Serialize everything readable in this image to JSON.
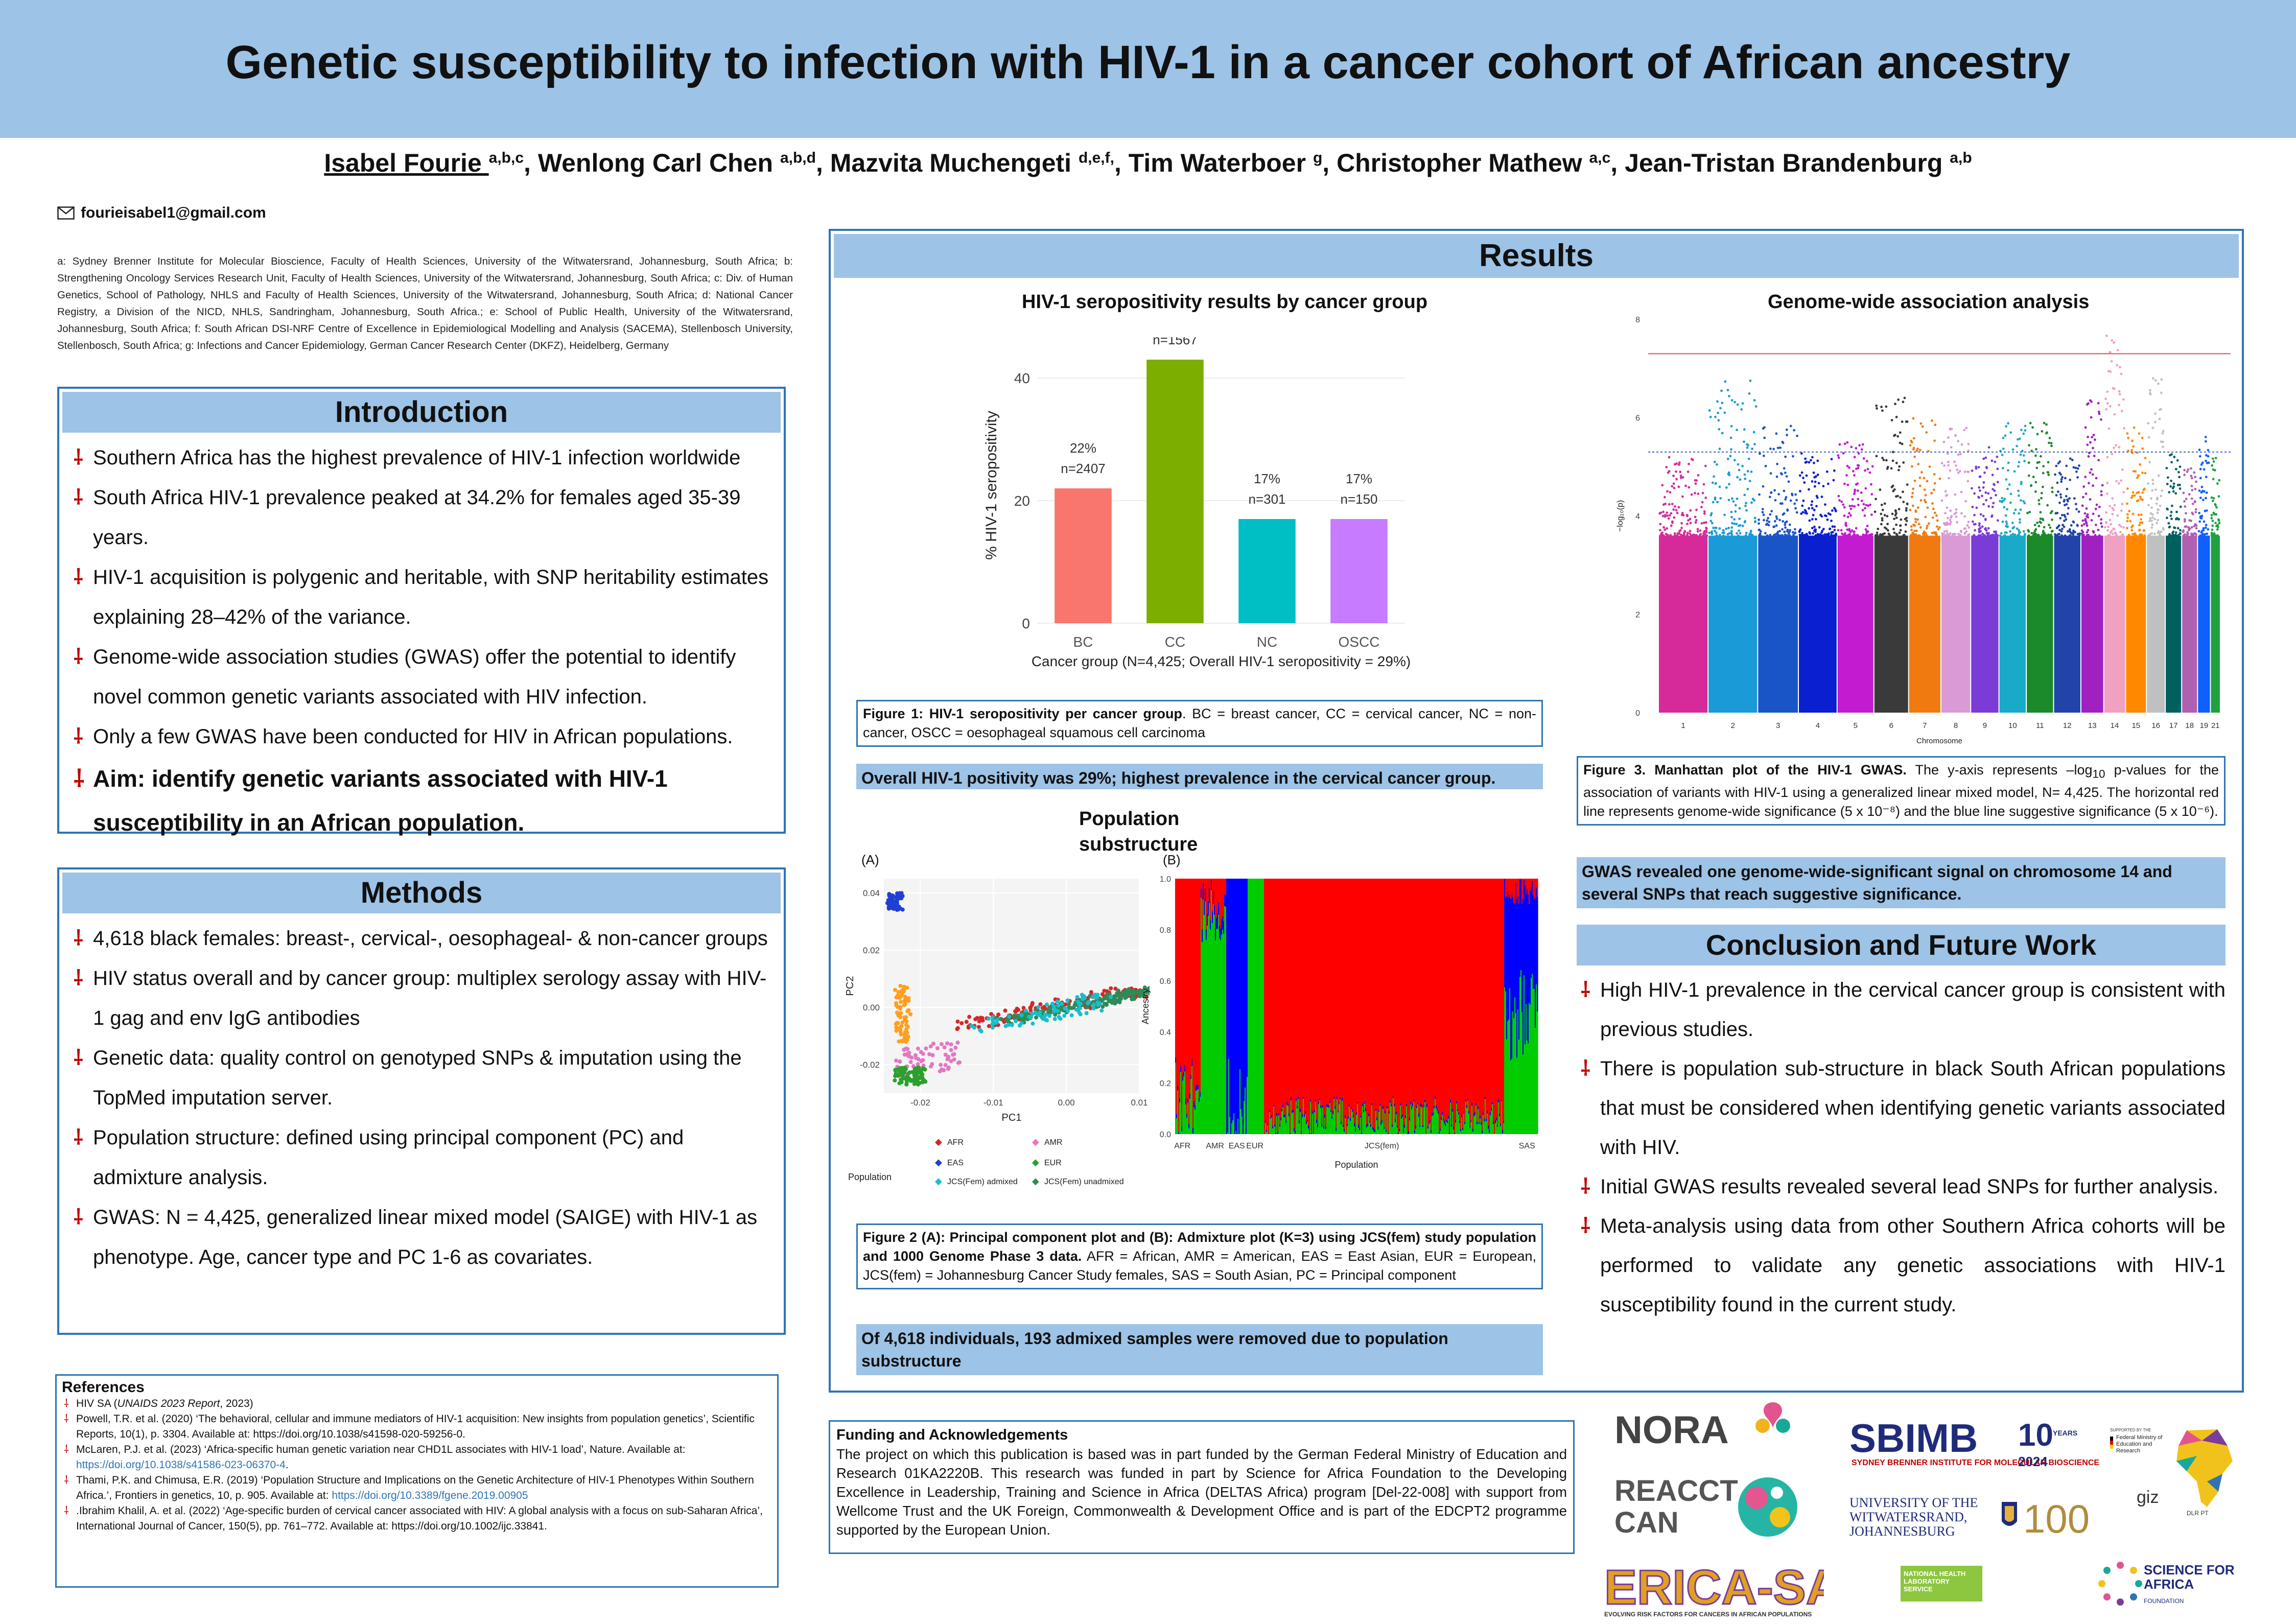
{
  "title": "Genetic susceptibility to infection with HIV-1 in a cancer cohort of African ancestry",
  "authors": [
    {
      "name": "Isabel Fourie",
      "sup": "a,b,c"
    },
    {
      "name": "Wenlong Carl Chen",
      "sup": "a,b,d"
    },
    {
      "name": "Mazvita Muchengeti",
      "sup": "d,e,f,"
    },
    {
      "name": "Tim Waterboer",
      "sup": "g"
    },
    {
      "name": "Christopher Mathew",
      "sup": "a,c"
    },
    {
      "name": "Jean-Tristan Brandenburg",
      "sup": "a,b"
    }
  ],
  "email": "fourieisabel1@gmail.com",
  "affiliations": "a: Sydney Brenner Institute for Molecular Bioscience, Faculty of Health Sciences, University of the Witwatersrand, Johannesburg, South Africa; b: Strengthening Oncology Services Research Unit, Faculty of Health Sciences, University of the Witwatersrand, Johannesburg, South Africa; c: Div. of Human Genetics, School of Pathology, NHLS and Faculty of Health Sciences, University of the Witwatersrand, Johannesburg, South Africa; d: National Cancer Registry, a Division of the NICD, NHLS, Sandringham, Johannesburg, South Africa.; e: School of Public Health, University of the Witwatersrand, Johannesburg, South Africa; f: South African DSI-NRF Centre of Excellence in Epidemiological Modelling and Analysis (SACEMA), Stellenbosch University, Stellenbosch, South Africa; g: Infections and Cancer Epidemiology, German Cancer Research Center (DKFZ), Heidelberg, Germany",
  "introduction": {
    "heading": "Introduction",
    "bullets": [
      "Southern Africa has the highest prevalence of HIV-1 infection worldwide",
      "South Africa HIV-1 prevalence peaked at 34.2% for females aged 35-39 years.",
      "HIV-1 acquisition is polygenic and heritable, with SNP heritability estimates explaining 28–42% of the variance.",
      "Genome-wide association studies (GWAS) offer the potential to identify novel common genetic variants associated with HIV infection.",
      "Only a few GWAS have been conducted for HIV in African populations."
    ],
    "aim": "Aim: identify genetic variants associated with HIV-1 susceptibility in an African population."
  },
  "methods": {
    "heading": "Methods",
    "bullets": [
      "4,618 black females: breast-, cervical-, oesophageal- & non-cancer groups",
      "HIV status overall and by cancer group: multiplex serology assay with HIV-1 gag and env IgG antibodies",
      "Genetic data: quality control on genotyped SNPs & imputation using the TopMed imputation server.",
      "Population structure: defined using principal component (PC) and admixture analysis.",
      "GWAS: N = 4,425, generalized linear mixed model (SAIGE) with HIV-1 as phenotype. Age, cancer type and PC 1-6 as covariates."
    ]
  },
  "references": {
    "heading": "References",
    "items": [
      {
        "text": "HIV SA (",
        "italic": "UNAIDS 2023 Report",
        "tail": ", 2023)"
      },
      {
        "text": "Powell, T.R. et al. (2020) ‘The behavioral, cellular and immune mediators of HIV-1 acquisition: New insights from population genetics’, Scientific Reports, 10(1), p. 3304. Available at: https://doi.org/10.1038/s41598-020-59256-0.",
        "italic": "",
        "tail": ""
      },
      {
        "text": "McLaren, P.J. et al. (2023) ‘Africa-specific human genetic variation near CHD1L associates with HIV-1 load’, Nature. Available at: ",
        "italic": "",
        "tail": "",
        "link": "https://doi.org/10.1038/s41586-023-06370-4",
        "after": "."
      },
      {
        "text": "Thami, P.K. and Chimusa, E.R. (2019) ‘Population Structure and Implications on the Genetic Architecture of HIV-1 Phenotypes Within Southern Africa.’, Frontiers in genetics, 10, p. 905. Available at: ",
        "italic": "",
        "tail": "",
        "link": "https://doi.org/10.3389/fgene.2019.00905",
        "after": ""
      },
      {
        "text": ".Ibrahim Khalil, A. et al. (2022) ‘Age-specific burden of cervical cancer associated with HIV: A global analysis with a focus on sub-Saharan Africa’, International Journal of Cancer, 150(5), pp. 761–772. Available at: https://doi.org/10.1002/ijc.33841.",
        "italic": "",
        "tail": ""
      }
    ]
  },
  "results": {
    "heading": "Results",
    "fig1_title": "HIV-1 seropositivity results by cancer group",
    "fig1_caption_bold": "Figure 1: HIV-1 seropositivity per cancer group",
    "fig1_caption_rest": ". BC = breast cancer, CC = cervical cancer, NC = non-cancer, OSCC = oesophageal squamous cell carcinoma",
    "fig1_highlight": "Overall HIV-1 positivity was 29%; highest prevalence in the cervical cancer group.",
    "pop_title": "Population substructure",
    "fig2_caption_bold": "Figure 2 (A): Principal component plot and (B): Admixture plot (K=3) using JCS(fem) study population and 1000 Genome Phase 3 data.",
    "fig2_caption_rest": " AFR = African, AMR = American, EAS = East Asian, EUR = European, JCS(fem) = Johannesburg Cancer Study females, SAS = South Asian, PC = Principal component",
    "fig2_highlight": "Of 4,618 individuals, 193 admixed samples were removed due to population substructure",
    "gwas_title": "Genome-wide association analysis",
    "fig3_caption_bold": "Figure 3. Manhattan plot of the HIV-1 GWAS.",
    "fig3_caption_rest_1": " The y-axis represents –log",
    "fig3_caption_sub": "10",
    "fig3_caption_rest_2": " p-values for the association of variants with HIV-1 using a generalized linear mixed model, N= 4,425. The horizontal red line represents genome-wide significance (5 x 10⁻⁸) and the blue line suggestive significance (5 x 10⁻⁶).",
    "fig3_highlight": "GWAS revealed one genome-wide-significant signal on chromosome 14 and several SNPs that reach suggestive significance."
  },
  "conclusion": {
    "heading": "Conclusion and Future Work",
    "bullets": [
      "High HIV-1 prevalence in the cervical cancer group is consistent with previous studies.",
      "There is population sub-structure in black South African populations that must be considered when identifying genetic variants associated with HIV.",
      "Initial GWAS results revealed several lead SNPs for further analysis.",
      "Meta-analysis using data from other Southern Africa cohorts will be performed to validate any genetic associations with HIV-1 susceptibility found in the current study."
    ]
  },
  "funding": {
    "heading": "Funding and Acknowledgements",
    "text": "The project on which this publication is based was in part funded by the German Federal Ministry of Education and Research 01KA2220B. This research was funded in part by Science for Africa Foundation to the Developing Excellence in Leadership, Training and Science in Africa (DELTAS Africa) program [Del-22-008] with support from Wellcome Trust and the UK Foreign, Commonwealth & Development Office and is part of the EDCPT2 programme supported by the European Union."
  },
  "logos": {
    "nora": "NORA",
    "reacct": "REACCT CAN",
    "erica": "ERICA-SA",
    "erica_sub": "EVOLVING RISK FACTORS FOR CANCERS IN AFRICAN POPULATIONS",
    "sbimb": "SBIMB",
    "sbimb_sub": "SYDNEY BRENNER INSTITUTE FOR MOLECULAR BIOSCIENCE",
    "sbimb_years": "10",
    "sbimb_years_label": "YEARS",
    "sbimb_year": "2024",
    "wits": "UNIVERSITY OF THE WITWATERSRAND, JOHANNESBURG",
    "wits_100": "100",
    "nhls": "NATIONAL HEALTH LABORATORY SERVICE",
    "bmbf": "Federal Ministry of Education and Research",
    "bmbf_top": "SUPPORTED BY THE",
    "giz": "giz",
    "dlr": "DLR PT",
    "sfa": "SCIENCE FOR AFRICA",
    "sfa_sub": "FOUNDATION"
  },
  "chart_data": [
    {
      "type": "bar",
      "title": "HIV-1 seropositivity results by cancer group",
      "categories": [
        "BC",
        "CC",
        "NC",
        "OSCC"
      ],
      "values": [
        22,
        43,
        17,
        17
      ],
      "value_labels": [
        "22%",
        "43%",
        "17%",
        "17%"
      ],
      "n_labels": [
        "n=2407",
        "n=1567",
        "n=301",
        "n=150"
      ],
      "colors": [
        "#f8766d",
        "#7cae00",
        "#00bfc4",
        "#c77cff"
      ],
      "xlabel": "Cancer group (N=4,425; Overall HIV-1 seropositivity = 29%)",
      "ylabel": "% HIV-1 seropositivity",
      "yticks": [
        0,
        20,
        40
      ],
      "ylim": [
        0,
        45
      ]
    },
    {
      "type": "scatter",
      "panel_label": "(A)",
      "xlabel": "PC1",
      "ylabel": "PC2",
      "xticks": [
        "-0.02",
        "-0.01",
        "0.00",
        "0.01"
      ],
      "yticks": [
        "0.04",
        "0.02",
        "0.00",
        "-0.02"
      ],
      "legend_title": "Population",
      "legend": [
        {
          "name": "AFR",
          "color": "#d62728"
        },
        {
          "name": "AMR",
          "color": "#e377c2"
        },
        {
          "name": "EAS",
          "color": "#1f3fd6"
        },
        {
          "name": "EUR",
          "color": "#2ca02c"
        },
        {
          "name": "JCS(Fem) admixed",
          "color": "#17becf"
        },
        {
          "name": "JCS(Fem) unadmixed",
          "color": "#2e8b57"
        },
        {
          "name": "SAS",
          "color": "#ff9f1c"
        }
      ]
    },
    {
      "type": "area",
      "panel_label": "(B)",
      "xlabel": "Population",
      "ylabel": "Ancestry",
      "groups": [
        "AFR",
        "AMR",
        "EAS",
        "EUR",
        "JCS(fem)",
        "SAS"
      ],
      "yticks": [
        "0.0",
        "0.2",
        "0.4",
        "0.6",
        "0.8",
        "1.0"
      ],
      "colors": [
        "#ff0000",
        "#0000ff",
        "#00cc00"
      ]
    },
    {
      "type": "scatter",
      "title": "Genome-wide association analysis",
      "xlabel": "Chromosome",
      "ylabel": "−log₁₀(p)",
      "yticks": [
        0,
        2,
        4,
        6,
        8
      ],
      "ylim": [
        0,
        8
      ],
      "chromosomes": [
        "1",
        "2",
        "3",
        "4",
        "5",
        "6",
        "7",
        "8",
        "9",
        "10",
        "11",
        "12",
        "13",
        "14",
        "15",
        "16",
        "17",
        "18",
        "19",
        "21"
      ],
      "chrom_colors": [
        "#d62a9a",
        "#1a9ad6",
        "#1a55c8",
        "#0a1fd0",
        "#c21bd0",
        "#3a3a3a",
        "#f07a10",
        "#d99ad6",
        "#7b3bd6",
        "#18aac8",
        "#1a8a2a",
        "#2244aa",
        "#a020c0",
        "#f0a0c0",
        "#ff8800",
        "#c0c0c0",
        "#006060",
        "#b060b0",
        "#1060ff",
        "#20a040"
      ],
      "genome_wide_line": 7.3,
      "suggestive_line": 5.3
    }
  ]
}
